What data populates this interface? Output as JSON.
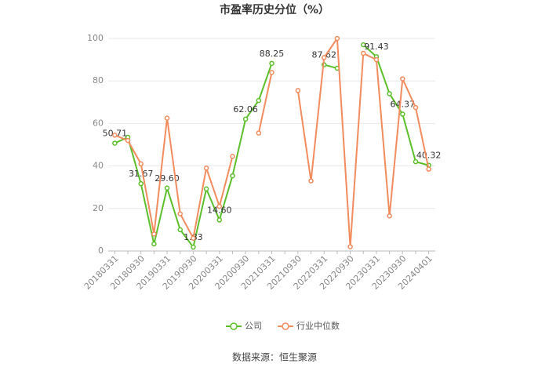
{
  "chart_data": {
    "type": "line",
    "title": "市盈率历史分位（%）",
    "categories": [
      "20180331",
      null,
      "20180930",
      null,
      "20190331",
      null,
      "20190930",
      null,
      "20200331",
      null,
      "20200930",
      null,
      "20210331",
      null,
      "20210930",
      null,
      "20220331",
      null,
      "20220930",
      null,
      "20230331",
      null,
      "20230930",
      null,
      "20240401"
    ],
    "series": [
      {
        "name": "公司",
        "color": "#5cbf2a",
        "values": [
          50.71,
          53.5,
          31.67,
          3.3,
          29.6,
          10,
          1.83,
          29.2,
          14.6,
          35.4,
          62.06,
          70.8,
          88.25,
          null,
          null,
          null,
          87.62,
          86,
          null,
          97,
          91.43,
          74,
          64.37,
          42,
          40.32
        ],
        "value_labels": [
          "50.71",
          null,
          "31.67",
          null,
          "29.60",
          null,
          "1.83",
          null,
          "14.60",
          null,
          "62.06",
          null,
          "88.25",
          null,
          null,
          null,
          "87.62",
          null,
          null,
          null,
          "91.43",
          null,
          "64.37",
          null,
          "40.32"
        ]
      },
      {
        "name": "行业中位数",
        "color": "#f28b5e",
        "values": [
          54.5,
          52,
          41,
          8,
          62.5,
          17.5,
          6,
          39,
          21,
          44.5,
          null,
          55.5,
          84,
          null,
          75.5,
          33,
          91,
          100,
          2,
          93,
          90,
          16.5,
          81,
          67.5,
          38.5
        ]
      }
    ],
    "ylim": [
      0,
      100
    ],
    "yticks": [
      0,
      20,
      40,
      60,
      80,
      100
    ],
    "grid": true,
    "legend": "bottom",
    "source": "数据来源：恒生聚源"
  }
}
